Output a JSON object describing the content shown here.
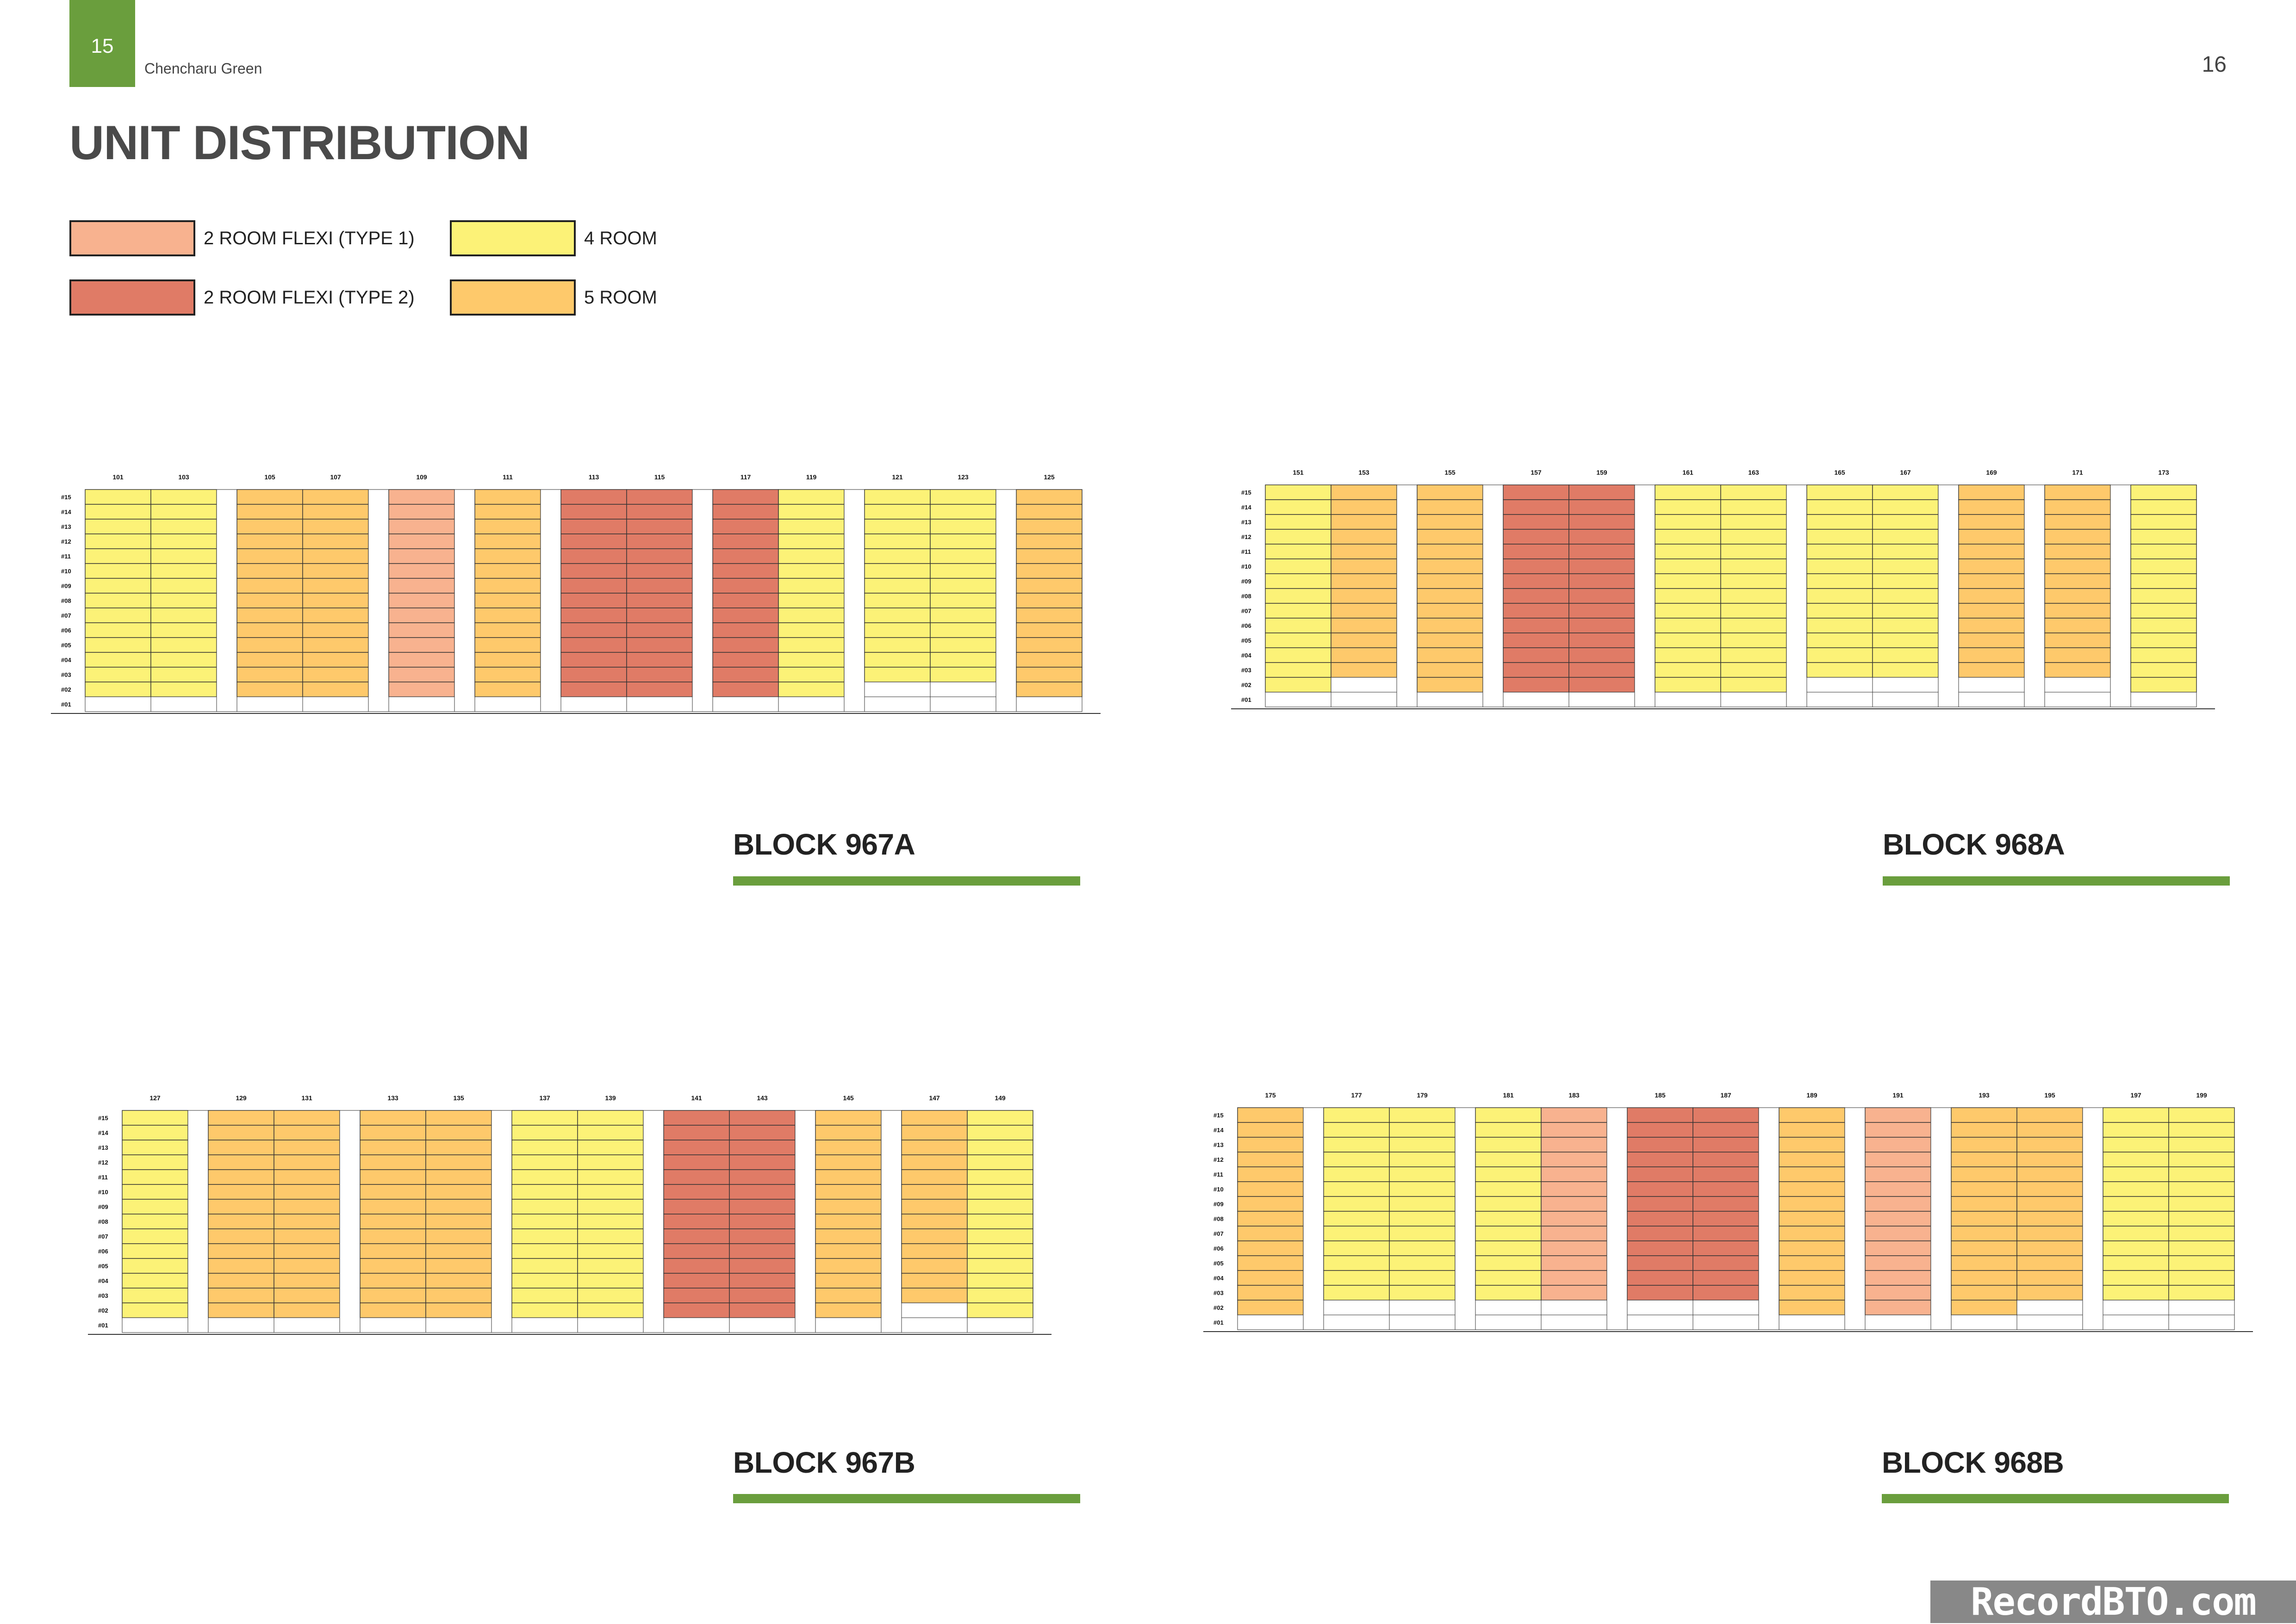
{
  "header": {
    "page_left": "15",
    "project": "Chencharu Green",
    "page_right": "16",
    "title": "UNIT DISTRIBUTION"
  },
  "colors": {
    "flexi1": "#f8b28f",
    "flexi2": "#e07b66",
    "room4": "#fcf277",
    "room5": "#fec96b",
    "accent": "#6a9e3d"
  },
  "legend": [
    {
      "key": "flexi1",
      "label": "2 ROOM FLEXI (TYPE 1)"
    },
    {
      "key": "flexi2",
      "label": "2 ROOM FLEXI (TYPE 2)"
    },
    {
      "key": "room4",
      "label": "4 ROOM"
    },
    {
      "key": "room5",
      "label": "5 ROOM"
    }
  ],
  "floors": [
    "#15",
    "#14",
    "#13",
    "#12",
    "#11",
    "#10",
    "#09",
    "#08",
    "#07",
    "#06",
    "#05",
    "#04",
    "#03",
    "#02",
    "#01"
  ],
  "blocks": [
    {
      "id": "967A",
      "label": "BLOCK 967A",
      "groups": [
        [
          {
            "unit": "101",
            "type": "room4",
            "from": 2
          },
          {
            "unit": "103",
            "type": "room4",
            "from": 2
          }
        ],
        [
          {
            "unit": "105",
            "type": "room5",
            "from": 2
          },
          {
            "unit": "107",
            "type": "room5",
            "from": 2
          }
        ],
        [
          {
            "unit": "109",
            "type": "flexi1",
            "from": 2
          }
        ],
        [
          {
            "unit": "111",
            "type": "room5",
            "from": 2
          }
        ],
        [
          {
            "unit": "113",
            "type": "flexi2",
            "from": 2
          },
          {
            "unit": "115",
            "type": "flexi2",
            "from": 2
          }
        ],
        [
          {
            "unit": "117",
            "type": "flexi2",
            "from": 2
          },
          {
            "unit": "119",
            "type": "room4",
            "from": 2
          }
        ],
        [
          {
            "unit": "121",
            "type": "room4",
            "from": 3
          },
          {
            "unit": "123",
            "type": "room4",
            "from": 3
          }
        ],
        [
          {
            "unit": "125",
            "type": "room5",
            "from": 2
          }
        ]
      ]
    },
    {
      "id": "968A",
      "label": "BLOCK 968A",
      "groups": [
        [
          {
            "unit": "151",
            "type": "room4",
            "from": 2
          },
          {
            "unit": "153",
            "type": "room5",
            "from": 3
          }
        ],
        [
          {
            "unit": "155",
            "type": "room5",
            "from": 2
          }
        ],
        [
          {
            "unit": "157",
            "type": "flexi2",
            "from": 2
          },
          {
            "unit": "159",
            "type": "flexi2",
            "from": 2
          }
        ],
        [
          {
            "unit": "161",
            "type": "room4",
            "from": 2
          },
          {
            "unit": "163",
            "type": "room4",
            "from": 2
          }
        ],
        [
          {
            "unit": "165",
            "type": "room4",
            "from": 3
          },
          {
            "unit": "167",
            "type": "room4",
            "from": 3
          }
        ],
        [
          {
            "unit": "169",
            "type": "room5",
            "from": 3
          }
        ],
        [
          {
            "unit": "171",
            "type": "room5",
            "from": 3
          }
        ],
        [
          {
            "unit": "173",
            "type": "room4",
            "from": 2
          }
        ]
      ]
    },
    {
      "id": "967B",
      "label": "BLOCK 967B",
      "groups": [
        [
          {
            "unit": "127",
            "type": "room4",
            "from": 2
          }
        ],
        [
          {
            "unit": "129",
            "type": "room5",
            "from": 2
          },
          {
            "unit": "131",
            "type": "room5",
            "from": 2
          }
        ],
        [
          {
            "unit": "133",
            "type": "room5",
            "from": 2
          },
          {
            "unit": "135",
            "type": "room5",
            "from": 2
          }
        ],
        [
          {
            "unit": "137",
            "type": "room4",
            "from": 2
          },
          {
            "unit": "139",
            "type": "room4",
            "from": 2
          }
        ],
        [
          {
            "unit": "141",
            "type": "flexi2",
            "from": 2
          },
          {
            "unit": "143",
            "type": "flexi2",
            "from": 2
          }
        ],
        [
          {
            "unit": "145",
            "type": "room5",
            "from": 2
          }
        ],
        [
          {
            "unit": "147",
            "type": "room5",
            "from": 3
          },
          {
            "unit": "149",
            "type": "room4",
            "from": 2
          }
        ]
      ]
    },
    {
      "id": "968B",
      "label": "BLOCK 968B",
      "groups": [
        [
          {
            "unit": "175",
            "type": "room5",
            "from": 2
          }
        ],
        [
          {
            "unit": "177",
            "type": "room4",
            "from": 3
          },
          {
            "unit": "179",
            "type": "room4",
            "from": 3
          }
        ],
        [
          {
            "unit": "181",
            "type": "room4",
            "from": 3
          },
          {
            "unit": "183",
            "type": "flexi1",
            "from": 3
          }
        ],
        [
          {
            "unit": "185",
            "type": "flexi2",
            "from": 3
          },
          {
            "unit": "187",
            "type": "flexi2",
            "from": 3
          }
        ],
        [
          {
            "unit": "189",
            "type": "room5",
            "from": 2
          }
        ],
        [
          {
            "unit": "191",
            "type": "flexi1",
            "from": 2
          }
        ],
        [
          {
            "unit": "193",
            "type": "room5",
            "from": 2
          },
          {
            "unit": "195",
            "type": "room5",
            "from": 3
          }
        ],
        [
          {
            "unit": "197",
            "type": "room4",
            "from": 3
          },
          {
            "unit": "199",
            "type": "room4",
            "from": 3
          }
        ]
      ]
    }
  ],
  "watermark": "RecordBTO.com"
}
